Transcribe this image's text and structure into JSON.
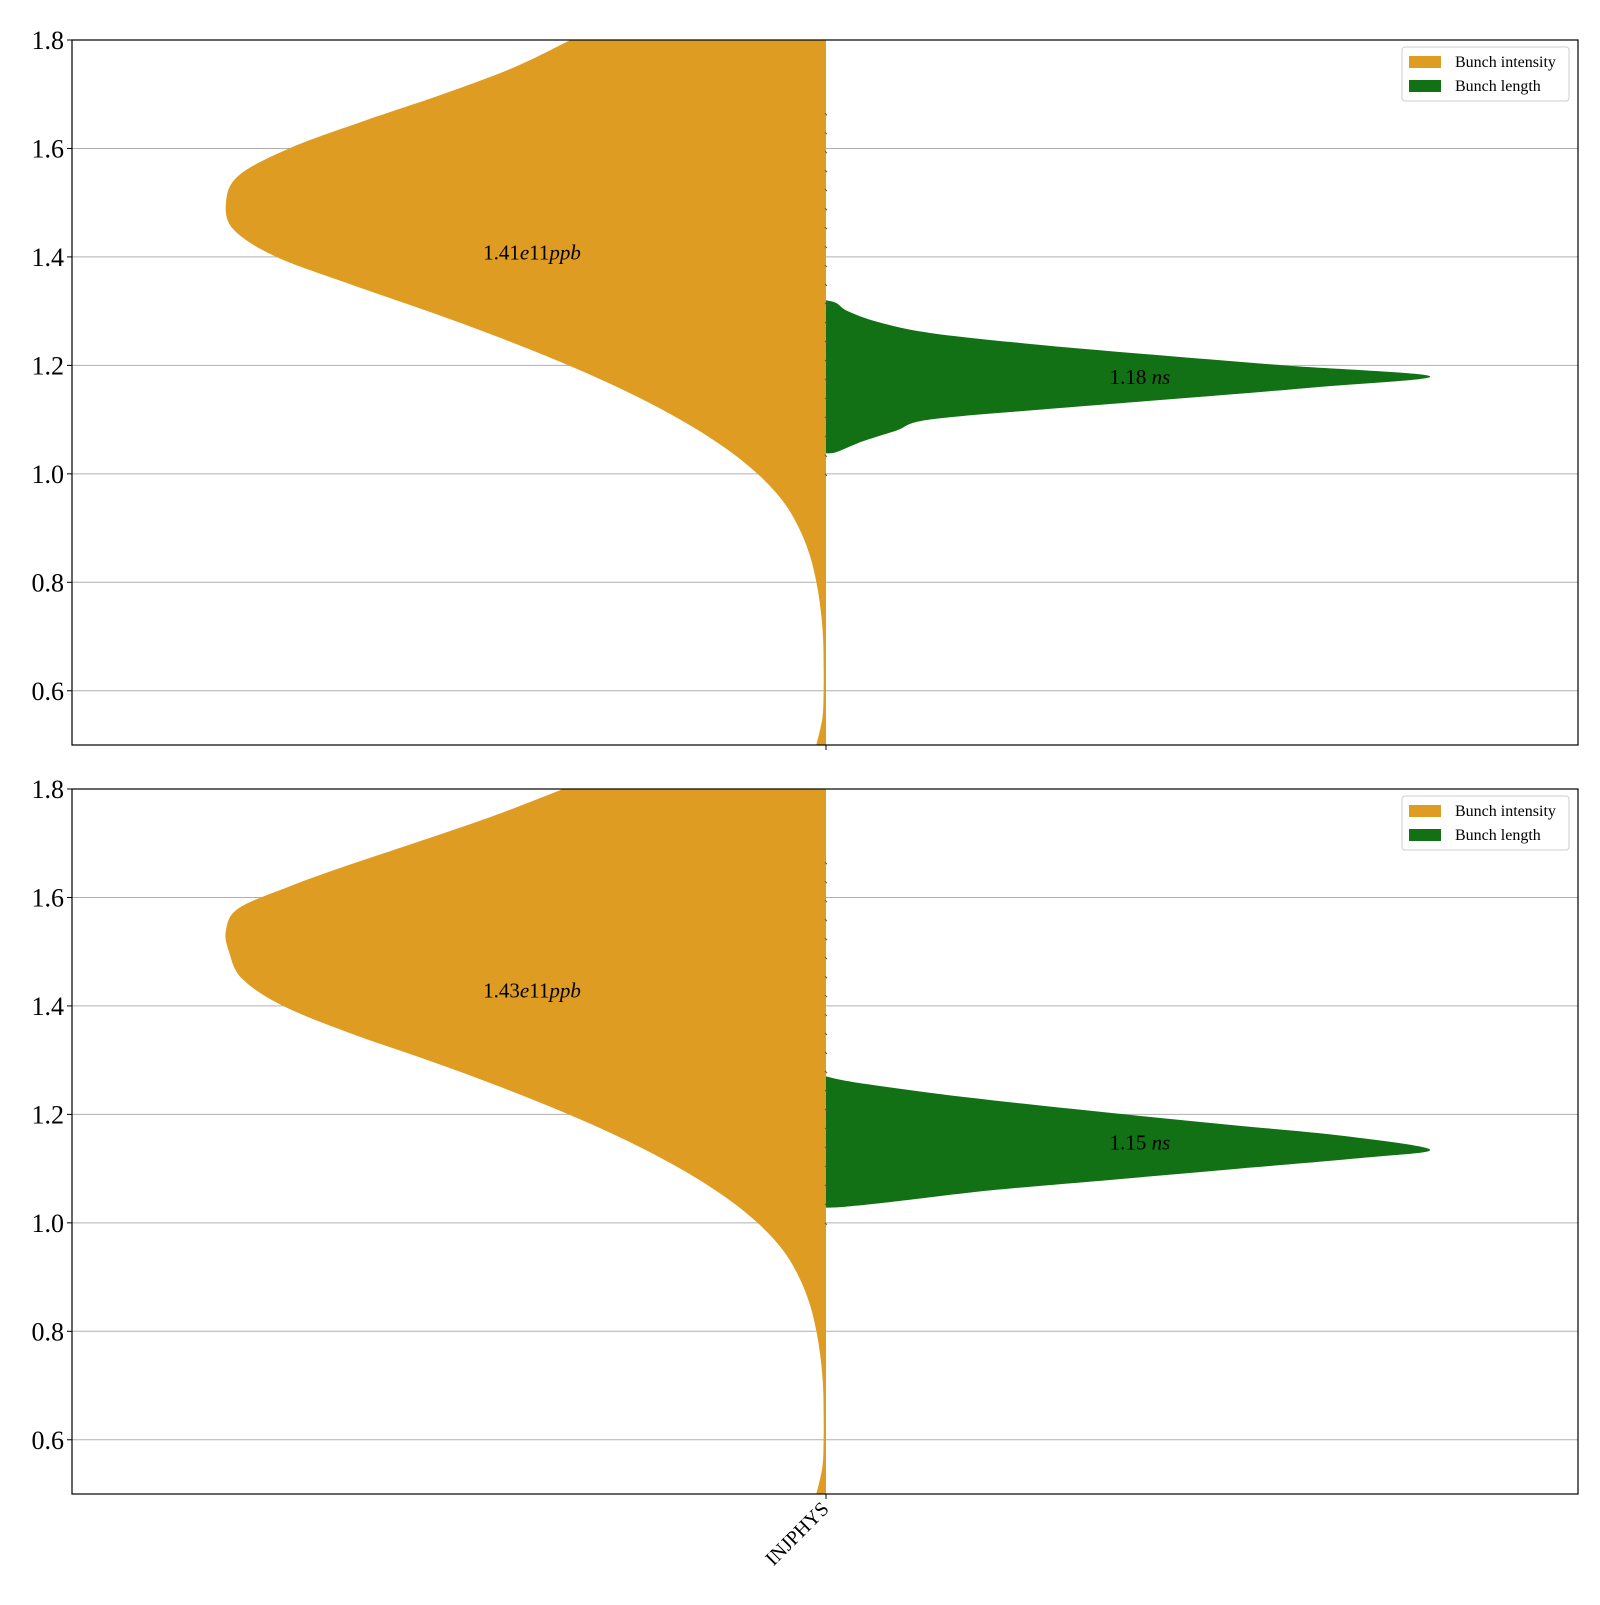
{
  "colors": {
    "intensity": "#df9c22",
    "length": "#117114",
    "grid": "#b0b0b0",
    "axis": "#000000",
    "legend_border": "#cccccc"
  },
  "chart_data": [
    {
      "type": "violin",
      "subtype": "split-violin",
      "ylim": [
        0.5,
        1.8
      ],
      "yticks": [
        "0.6",
        "0.8",
        "1.0",
        "1.2",
        "1.4",
        "1.6",
        "1.8"
      ],
      "ytick_values": [
        0.6,
        0.8,
        1.0,
        1.2,
        1.4,
        1.6,
        1.8
      ],
      "categories": [
        "INJPHYS"
      ],
      "xtick_label_visible": false,
      "grid": "horizontal",
      "legend_position": "top-right",
      "legend": [
        {
          "label": "Bunch intensity",
          "series": "intensity"
        },
        {
          "label": "Bunch length",
          "series": "length"
        }
      ],
      "series": [
        {
          "name": "Bunch intensity",
          "key": "intensity",
          "side": "left",
          "annotation": {
            "number": "1.41",
            "italic_a": "e",
            "mid": "11",
            "italic_b": "ppb",
            "y": 1.41
          },
          "profile": [
            [
              0.5,
              0.016
            ],
            [
              0.55,
              0.006
            ],
            [
              0.6,
              0.004
            ],
            [
              0.65,
              0.004
            ],
            [
              0.7,
              0.005
            ],
            [
              0.75,
              0.009
            ],
            [
              0.8,
              0.016
            ],
            [
              0.85,
              0.027
            ],
            [
              0.9,
              0.045
            ],
            [
              0.95,
              0.072
            ],
            [
              1.0,
              0.114
            ],
            [
              1.05,
              0.171
            ],
            [
              1.1,
              0.243
            ],
            [
              1.15,
              0.329
            ],
            [
              1.2,
              0.429
            ],
            [
              1.25,
              0.541
            ],
            [
              1.3,
              0.664
            ],
            [
              1.35,
              0.794
            ],
            [
              1.4,
              0.916
            ],
            [
              1.45,
              0.987
            ],
            [
              1.5,
              1.0
            ],
            [
              1.55,
              0.979
            ],
            [
              1.6,
              0.895
            ],
            [
              1.65,
              0.772
            ],
            [
              1.7,
              0.639
            ],
            [
              1.75,
              0.519
            ],
            [
              1.8,
              0.426
            ]
          ]
        },
        {
          "name": "Bunch length",
          "key": "length",
          "side": "right",
          "annotation": {
            "number": "1.18",
            "italic_a": "",
            "mid": "",
            "italic_b": "ns",
            "y": 1.18
          },
          "profile": [
            [
              1.038,
              0.0
            ],
            [
              1.04,
              0.017
            ],
            [
              1.06,
              0.061
            ],
            [
              1.08,
              0.117
            ],
            [
              1.1,
              0.171
            ],
            [
              1.12,
              0.372
            ],
            [
              1.14,
              0.598
            ],
            [
              1.16,
              0.814
            ],
            [
              1.18,
              1.0
            ],
            [
              1.2,
              0.758
            ],
            [
              1.22,
              0.538
            ],
            [
              1.24,
              0.334
            ],
            [
              1.26,
              0.171
            ],
            [
              1.28,
              0.086
            ],
            [
              1.3,
              0.036
            ],
            [
              1.315,
              0.017
            ],
            [
              1.32,
              0.0
            ]
          ]
        }
      ]
    },
    {
      "type": "violin",
      "subtype": "split-violin",
      "ylim": [
        0.5,
        1.8
      ],
      "yticks": [
        "0.6",
        "0.8",
        "1.0",
        "1.2",
        "1.4",
        "1.6",
        "1.8"
      ],
      "ytick_values": [
        0.6,
        0.8,
        1.0,
        1.2,
        1.4,
        1.6,
        1.8
      ],
      "categories": [
        "INJPHYS"
      ],
      "xtick_label_visible": true,
      "grid": "horizontal",
      "legend_position": "top-right",
      "legend": [
        {
          "label": "Bunch intensity",
          "series": "intensity"
        },
        {
          "label": "Bunch length",
          "series": "length"
        }
      ],
      "series": [
        {
          "name": "Bunch intensity",
          "key": "intensity",
          "side": "left",
          "annotation": {
            "number": "1.43",
            "italic_a": "e",
            "mid": "11",
            "italic_b": "ppb",
            "y": 1.43
          },
          "profile": [
            [
              0.5,
              0.016
            ],
            [
              0.55,
              0.006
            ],
            [
              0.6,
              0.004
            ],
            [
              0.65,
              0.004
            ],
            [
              0.7,
              0.005
            ],
            [
              0.75,
              0.009
            ],
            [
              0.8,
              0.016
            ],
            [
              0.85,
              0.027
            ],
            [
              0.9,
              0.045
            ],
            [
              0.95,
              0.072
            ],
            [
              1.0,
              0.114
            ],
            [
              1.05,
              0.171
            ],
            [
              1.1,
              0.243
            ],
            [
              1.15,
              0.329
            ],
            [
              1.2,
              0.429
            ],
            [
              1.25,
              0.541
            ],
            [
              1.3,
              0.664
            ],
            [
              1.35,
              0.794
            ],
            [
              1.4,
              0.905
            ],
            [
              1.45,
              0.973
            ],
            [
              1.5,
              0.995
            ],
            [
              1.54,
              1.0
            ],
            [
              1.58,
              0.979
            ],
            [
              1.62,
              0.895
            ],
            [
              1.66,
              0.795
            ],
            [
              1.7,
              0.687
            ],
            [
              1.75,
              0.555
            ],
            [
              1.8,
              0.438
            ]
          ]
        },
        {
          "name": "Bunch length",
          "key": "length",
          "side": "right",
          "annotation": {
            "number": "1.15",
            "italic_a": "",
            "mid": "",
            "italic_b": "ns",
            "y": 1.15
          },
          "profile": [
            [
              1.028,
              0.0
            ],
            [
              1.03,
              0.034
            ],
            [
              1.04,
              0.12
            ],
            [
              1.06,
              0.274
            ],
            [
              1.08,
              0.479
            ],
            [
              1.1,
              0.684
            ],
            [
              1.12,
              0.89
            ],
            [
              1.135,
              1.0
            ],
            [
              1.16,
              0.86
            ],
            [
              1.18,
              0.675
            ],
            [
              1.2,
              0.495
            ],
            [
              1.22,
              0.325
            ],
            [
              1.24,
              0.171
            ],
            [
              1.26,
              0.043
            ],
            [
              1.27,
              0.0
            ]
          ]
        }
      ]
    }
  ],
  "xtick_label": "INJPHYS"
}
